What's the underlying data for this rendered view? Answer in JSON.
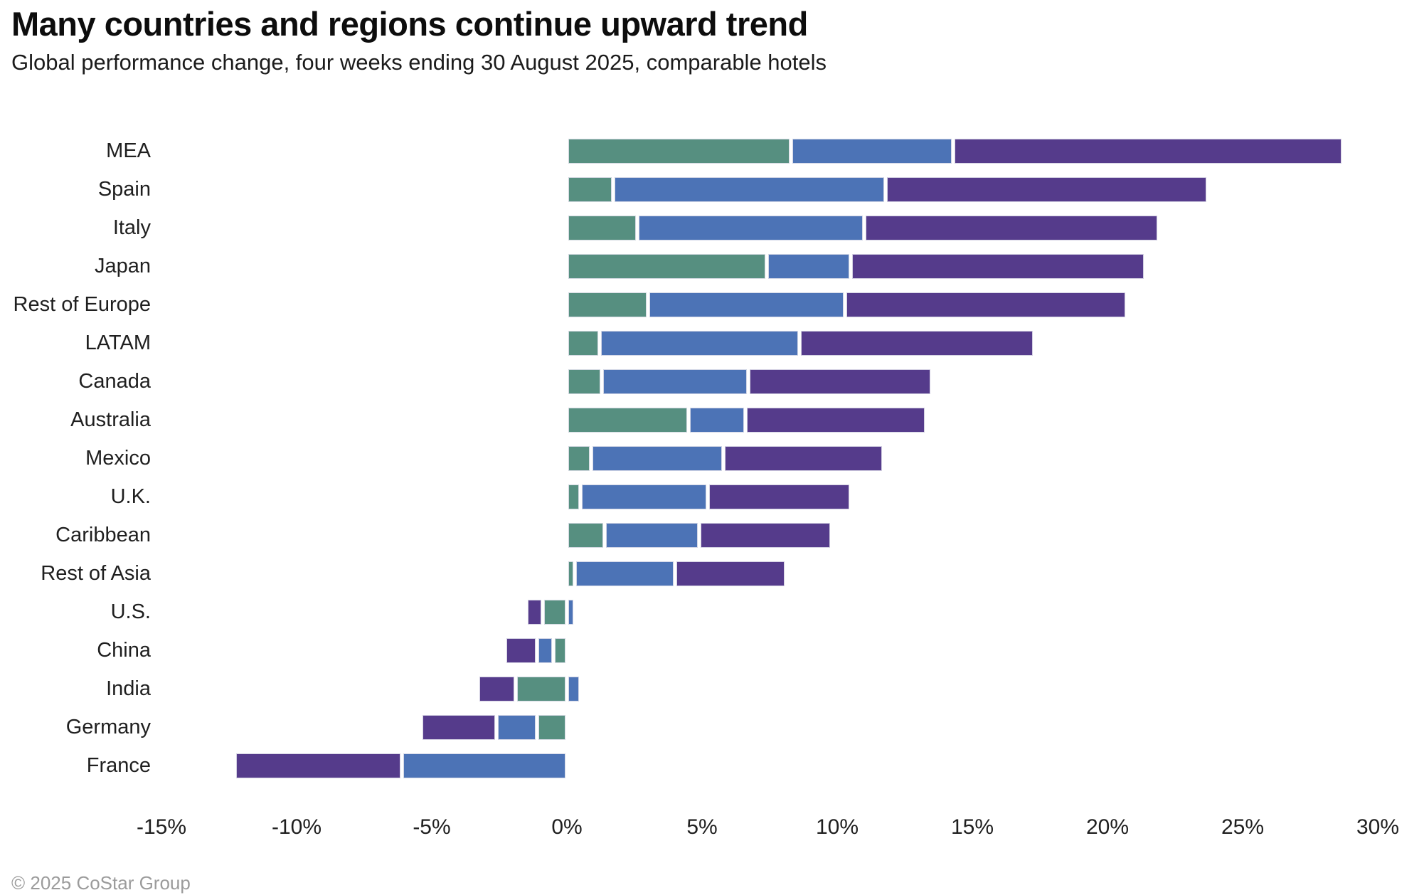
{
  "header": {
    "title": "Many countries and regions continue upward trend",
    "subtitle": "Global performance change, four weeks ending 30 August 2025, comparable hotels"
  },
  "footer": {
    "copyright": "© 2025 CoStar Group"
  },
  "chart_data": {
    "type": "bar",
    "orientation": "horizontal",
    "stacked": true,
    "title": "Many countries and regions continue upward trend",
    "subtitle": "Global performance change, four weeks ending 30 August 2025, comparable hotels",
    "unit": "%",
    "grid": false,
    "legend": "none",
    "xlim": [
      -15,
      30
    ],
    "x_ticks": [
      {
        "label": "-15%",
        "value": -15
      },
      {
        "label": "-10%",
        "value": -10
      },
      {
        "label": "-5%",
        "value": -5
      },
      {
        "label": "0%",
        "value": 0
      },
      {
        "label": "5%",
        "value": 5
      },
      {
        "label": "10%",
        "value": 10
      },
      {
        "label": "15%",
        "value": 15
      },
      {
        "label": "20%",
        "value": 20
      },
      {
        "label": "25%",
        "value": 25
      },
      {
        "label": "30%",
        "value": 30
      }
    ],
    "categories": [
      "MEA",
      "Spain",
      "Italy",
      "Japan",
      "Rest of Europe",
      "LATAM",
      "Canada",
      "Australia",
      "Mexico",
      "U.K.",
      "Caribbean",
      "Rest of Asia",
      "U.S.",
      "China",
      "India",
      "Germany",
      "France"
    ],
    "series": [
      {
        "name": "green",
        "color": "#568F80",
        "values": [
          8.3,
          1.7,
          2.6,
          7.4,
          3.0,
          1.2,
          1.3,
          4.5,
          0.9,
          0.5,
          1.4,
          0.3,
          -0.9,
          -0.5,
          -1.9,
          -1.1,
          0.0
        ]
      },
      {
        "name": "blue",
        "color": "#4C73B6",
        "values": [
          6.0,
          10.1,
          8.4,
          3.1,
          7.3,
          7.4,
          5.4,
          2.1,
          4.9,
          4.7,
          3.5,
          3.7,
          0.3,
          -0.6,
          0.5,
          -1.5,
          -6.1
        ]
      },
      {
        "name": "purple",
        "color": "#553B8B",
        "values": [
          14.4,
          11.9,
          10.9,
          10.9,
          10.4,
          8.7,
          6.8,
          6.7,
          5.9,
          5.3,
          4.9,
          4.1,
          -0.6,
          -1.2,
          -1.4,
          -2.8,
          -6.2
        ]
      }
    ]
  }
}
